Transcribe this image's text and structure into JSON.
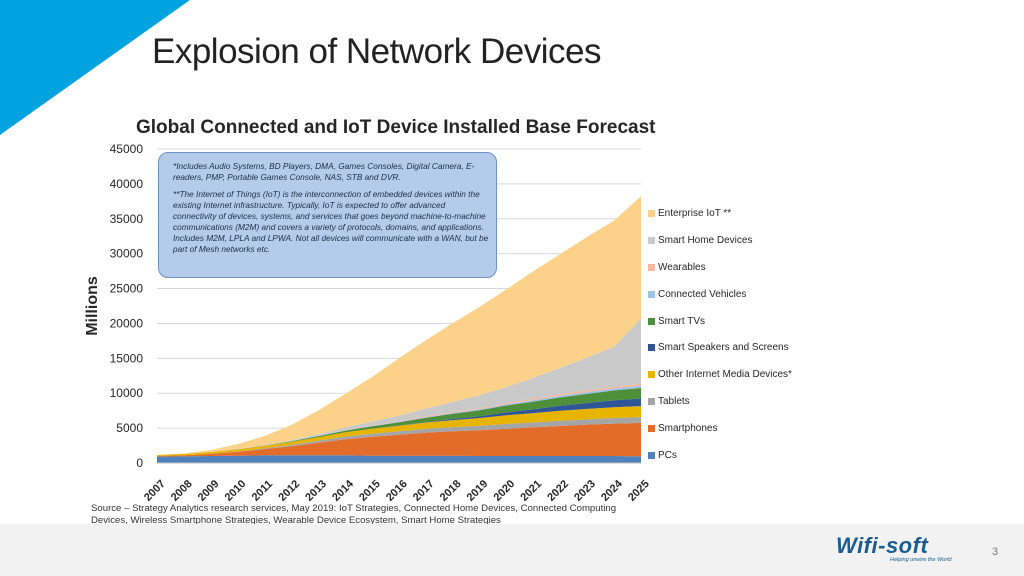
{
  "slide": {
    "title": "Explosion of Network Devices",
    "page_number": "3",
    "accent_color": "#00a3e0"
  },
  "chart_data": {
    "type": "area",
    "stacked": true,
    "title": "Global Connected and IoT Device Installed Base Forecast",
    "ylabel": "Millions",
    "xlabel": "",
    "ylim": [
      0,
      45000
    ],
    "yticks": [
      "45000",
      "40000",
      "35000",
      "30000",
      "25000",
      "20000",
      "15000",
      "10000",
      "5000",
      "0"
    ],
    "categories": [
      "2007",
      "2008",
      "2009",
      "2010",
      "2011",
      "2012",
      "2013",
      "2014",
      "2015",
      "2016",
      "2017",
      "2018",
      "2019",
      "2020",
      "2021",
      "2022",
      "2023",
      "2024",
      "2025"
    ],
    "legend_position": "right",
    "grid": true,
    "note": {
      "paragraph1": "*Includes Audio Systems, BD Players, DMA, Games Consoles, Digital Camera, E-readers, PMP, Portable Games Console, NAS, STB and DVR.",
      "paragraph2": "**The Internet of Things (IoT) is the interconnection of embedded devices within the existing Internet infrastructure. Typically, IoT is expected to offer advanced connectivity of devices, systems, and services that goes beyond machine-to-machine communications (M2M) and covers a variety of protocols, domains, and applications. Includes M2M, LPLA and LPWA. Not all devices will communicate with a WAN, but be part of Mesh networks etc."
    },
    "series": [
      {
        "name": "PCs",
        "color": "#4f81bd",
        "values": [
          900,
          950,
          1000,
          1050,
          1100,
          1100,
          1100,
          1100,
          1050,
          1050,
          1050,
          1050,
          1000,
          1000,
          1000,
          1000,
          1000,
          1000,
          950
        ]
      },
      {
        "name": "Smartphones",
        "color": "#e46c2a",
        "values": [
          100,
          150,
          300,
          550,
          900,
          1300,
          1800,
          2300,
          2700,
          3000,
          3300,
          3500,
          3700,
          3900,
          4100,
          4300,
          4500,
          4650,
          4800
        ]
      },
      {
        "name": "Tablets",
        "color": "#a5a5a5",
        "values": [
          0,
          0,
          10,
          50,
          100,
          200,
          300,
          400,
          450,
          500,
          550,
          600,
          650,
          700,
          700,
          750,
          750,
          800,
          800
        ]
      },
      {
        "name": "Other Internet Media Devices*",
        "color": "#e7b400",
        "values": [
          150,
          200,
          250,
          300,
          350,
          420,
          500,
          600,
          700,
          800,
          900,
          1000,
          1100,
          1250,
          1350,
          1450,
          1500,
          1550,
          1600
        ]
      },
      {
        "name": "Smart Speakers and Screens",
        "color": "#2f5597",
        "values": [
          0,
          0,
          0,
          0,
          0,
          0,
          0,
          0,
          10,
          30,
          80,
          150,
          250,
          400,
          550,
          700,
          850,
          1000,
          1100
        ]
      },
      {
        "name": "Smart TVs",
        "color": "#4e8f3a",
        "values": [
          0,
          0,
          10,
          20,
          50,
          100,
          150,
          250,
          350,
          450,
          600,
          750,
          850,
          1000,
          1100,
          1200,
          1300,
          1400,
          1500
        ]
      },
      {
        "name": "Connected Vehicles",
        "color": "#9dc3e6",
        "values": [
          0,
          0,
          0,
          5,
          10,
          20,
          30,
          40,
          50,
          70,
          90,
          110,
          140,
          170,
          200,
          230,
          260,
          290,
          320
        ]
      },
      {
        "name": "Wearables",
        "color": "#f4b8a0",
        "values": [
          0,
          0,
          0,
          0,
          10,
          20,
          40,
          60,
          80,
          100,
          120,
          140,
          160,
          180,
          200,
          220,
          240,
          260,
          280
        ]
      },
      {
        "name": "Smart Home Devices",
        "color": "#c9c9c9",
        "values": [
          0,
          0,
          10,
          30,
          50,
          100,
          200,
          350,
          550,
          800,
          1100,
          1450,
          1850,
          2300,
          3000,
          3800,
          4700,
          5700,
          9400
        ]
      },
      {
        "name": "Enterprise IoT **",
        "color": "#fcd28a",
        "values": [
          0,
          50,
          300,
          700,
          1300,
          2200,
          3400,
          4800,
          6400,
          8200,
          9800,
          11300,
          12700,
          14000,
          15300,
          16300,
          17300,
          18100,
          17500
        ]
      }
    ],
    "legend": [
      "Enterprise IoT **",
      "Smart Home Devices",
      "Wearables",
      "Connected Vehicles",
      "Smart TVs",
      "Smart Speakers and Screens",
      "Other Internet Media Devices*",
      "Tablets",
      "Smartphones",
      "PCs"
    ],
    "legend_colors": [
      "#fcd28a",
      "#c9c9c9",
      "#f4b8a0",
      "#9dc3e6",
      "#4e8f3a",
      "#2f5597",
      "#e7b400",
      "#a5a5a5",
      "#e46c2a",
      "#4f81bd"
    ],
    "source": "Source – Strategy Analytics research services, May 2019: IoT Strategies, Connected Home Devices, Connected Computing Devices, Wireless Smartphone Strategies, Wearable Device Ecosystem, Smart Home Strategies"
  },
  "logo": {
    "text": "Wifi-soft",
    "tagline": "Helping unwire the World"
  }
}
